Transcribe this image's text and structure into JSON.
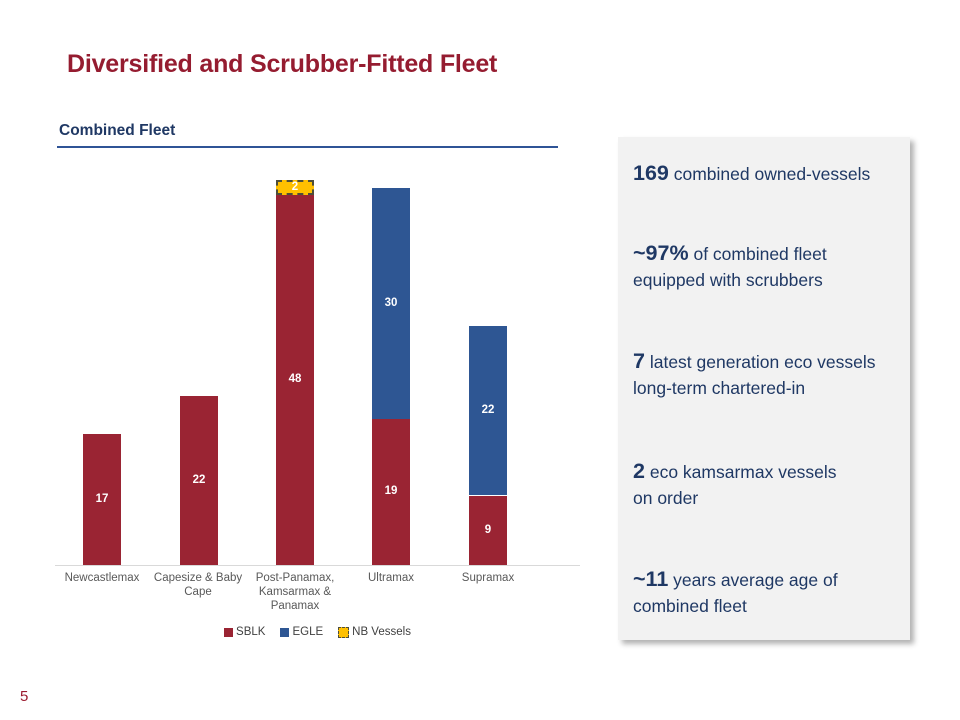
{
  "slide": {
    "title": "Diversified and Scrubber-Fitted Fleet",
    "page_number": "5"
  },
  "section": {
    "header": "Combined Fleet"
  },
  "colors": {
    "title_maroon": "#951C30",
    "navy_text": "#1F3864",
    "sblk_red": "#9A2433",
    "egle_blue": "#2E5693",
    "nb_yellow": "#FFC000",
    "axis_gray": "#D9D9D9",
    "xlabel_gray": "#595959",
    "panel_bg": "#F2F2F2"
  },
  "chart_data": {
    "type": "bar",
    "stacked": true,
    "title": "Combined Fleet",
    "categories": [
      "Newcastlemax",
      "Capesize & Baby Cape",
      "Post-Panamax, Kamsarmax & Panamax",
      "Ultramax",
      "Supramax"
    ],
    "series": [
      {
        "name": "SBLK",
        "color": "#9A2433",
        "dashed": false,
        "values": [
          17,
          22,
          48,
          19,
          9
        ]
      },
      {
        "name": "EGLE",
        "color": "#2E5693",
        "dashed": false,
        "values": [
          0,
          0,
          0,
          30,
          22
        ]
      },
      {
        "name": "NB Vessels",
        "color": "#FFC000",
        "dashed": true,
        "values": [
          0,
          0,
          2,
          0,
          0
        ]
      }
    ],
    "totals": [
      17,
      22,
      50,
      49,
      31
    ],
    "data_labels": true,
    "grid": false,
    "legend_position": "bottom",
    "xlabel": "",
    "ylabel": ""
  },
  "stats_panel": {
    "items": [
      {
        "value": "169",
        "text": " combined owned-vessels"
      },
      {
        "value": "~97%",
        "text": " of combined fleet\nequipped with scrubbers"
      },
      {
        "value": "7",
        "text": " latest generation eco vessels\nlong-term chartered-in"
      },
      {
        "value": "2",
        "text": " eco kamsarmax vessels\non order"
      },
      {
        "value": "~11",
        "text": " years average age of\ncombined fleet"
      }
    ]
  }
}
